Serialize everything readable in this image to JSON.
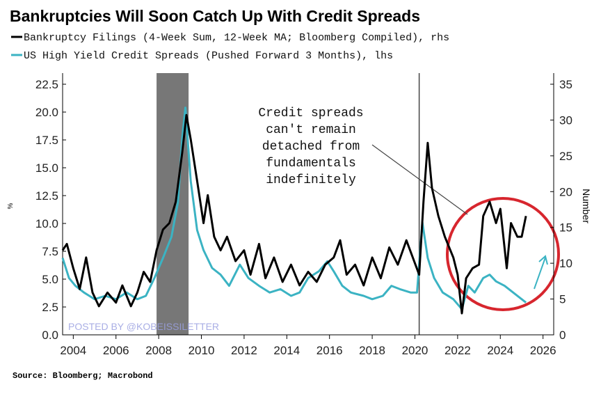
{
  "chart_data": {
    "type": "line",
    "title": "Bankruptcies Will Soon Catch Up With Credit Spreads",
    "ylabel": "%",
    "y2label": "Number",
    "source": "Source: Bloomberg; Macrobond",
    "watermark": "POSTED BY @KOBEISSILETTER",
    "annotation": [
      "Credit spreads",
      "can't remain",
      "detached from",
      "fundamentals",
      "indefinitely"
    ],
    "shaded_periods": [
      [
        2007.9,
        2009.4
      ]
    ],
    "vlines": [
      2020.2
    ],
    "xlim": [
      2003.5,
      2026.5
    ],
    "xticks": [
      2004,
      2006,
      2008,
      2010,
      2012,
      2014,
      2016,
      2018,
      2020,
      2022,
      2024,
      2026
    ],
    "ylim": [
      0,
      22.5
    ],
    "yticks": [
      {
        "value": 0,
        "label": "0.0"
      },
      2.5,
      {
        "value": 5,
        "label": "5.0"
      },
      7.5,
      {
        "value": 10,
        "label": "10.0"
      },
      12.5,
      {
        "value": 15,
        "label": "15.0"
      },
      17.5,
      {
        "value": 20,
        "label": "20.0"
      },
      22.5
    ],
    "y2lim": [
      0,
      35
    ],
    "y2ticks": [
      0,
      5,
      10,
      15,
      20,
      25,
      30,
      35
    ],
    "series": [
      {
        "name": "Bankruptcy Filings (4-Week Sum, 12-Week MA; Bloomberg Compiled), rhs",
        "color": "#000000",
        "axis": "y2",
        "x": [
          2003.5,
          2003.7,
          2004,
          2004.3,
          2004.6,
          2004.9,
          2005.2,
          2005.6,
          2006,
          2006.3,
          2006.7,
          2007,
          2007.3,
          2007.6,
          2007.9,
          2008.2,
          2008.5,
          2008.8,
          2009.1,
          2009.3,
          2009.5,
          2009.8,
          2010.1,
          2010.3,
          2010.6,
          2010.9,
          2011.2,
          2011.6,
          2012,
          2012.3,
          2012.7,
          2013,
          2013.4,
          2013.8,
          2014.2,
          2014.6,
          2015,
          2015.4,
          2015.8,
          2016.2,
          2016.5,
          2016.8,
          2017.2,
          2017.6,
          2018,
          2018.4,
          2018.8,
          2019.2,
          2019.6,
          2019.9,
          2020.2,
          2020.4,
          2020.6,
          2020.8,
          2021.1,
          2021.4,
          2021.8,
          2022,
          2022.2,
          2022.4,
          2022.7,
          2023,
          2023.2,
          2023.5,
          2023.8,
          2024,
          2024.3,
          2024.5,
          2024.8,
          2025,
          2025.2
        ],
        "values": [
          11.8,
          12.7,
          9.3,
          6.4,
          10.8,
          5.9,
          4.0,
          5.9,
          4.5,
          6.9,
          4.0,
          5.9,
          8.8,
          7.4,
          11.8,
          14.7,
          15.6,
          18.6,
          25.4,
          30.7,
          27.3,
          21.5,
          15.6,
          19.5,
          13.7,
          11.8,
          13.7,
          10.3,
          11.8,
          8.4,
          12.7,
          7.9,
          10.8,
          7.4,
          9.8,
          6.9,
          8.8,
          7.4,
          9.8,
          10.8,
          13.2,
          8.4,
          9.8,
          6.9,
          10.8,
          7.9,
          12.2,
          9.8,
          13.2,
          10.8,
          8.4,
          18.6,
          26.8,
          20.5,
          16.6,
          13.7,
          10.8,
          8.4,
          3.0,
          7.9,
          9.3,
          9.8,
          16.6,
          18.6,
          15.6,
          17.6,
          9.3,
          15.6,
          13.7,
          13.7,
          16.6
        ]
      },
      {
        "name": "US High Yield Credit Spreads (Pushed Forward 3 Months), lhs",
        "color": "#3bb3c3",
        "axis": "y",
        "x": [
          2003.5,
          2003.8,
          2004.1,
          2004.5,
          2005,
          2005.5,
          2006,
          2006.5,
          2007,
          2007.4,
          2007.8,
          2008.2,
          2008.6,
          2008.9,
          2009.1,
          2009.25,
          2009.5,
          2009.8,
          2010.1,
          2010.5,
          2010.9,
          2011.3,
          2011.8,
          2012.2,
          2012.7,
          2013.2,
          2013.7,
          2014.2,
          2014.6,
          2015,
          2015.5,
          2015.9,
          2016.2,
          2016.6,
          2017,
          2017.6,
          2018,
          2018.5,
          2018.9,
          2019.3,
          2019.8,
          2020.1,
          2020.35,
          2020.6,
          2020.9,
          2021.3,
          2021.8,
          2022.2,
          2022.5,
          2022.8,
          2023.2,
          2023.5,
          2023.8,
          2024.2,
          2024.6,
          2025,
          2025.2
        ],
        "values": [
          6.9,
          5.1,
          4.4,
          3.8,
          3.2,
          3.5,
          3.2,
          3.8,
          3.2,
          3.5,
          5.1,
          6.9,
          8.8,
          11.9,
          17.6,
          20.4,
          13.8,
          9.4,
          7.6,
          6.0,
          5.4,
          4.4,
          6.3,
          5.1,
          4.4,
          3.8,
          4.1,
          3.5,
          3.8,
          5.1,
          5.7,
          6.6,
          5.7,
          4.4,
          3.8,
          3.5,
          3.2,
          3.5,
          4.4,
          4.1,
          3.8,
          3.8,
          10.1,
          6.9,
          5.1,
          3.8,
          3.2,
          2.3,
          4.4,
          3.8,
          5.1,
          5.4,
          4.8,
          4.4,
          3.8,
          3.2,
          2.9
        ]
      }
    ]
  }
}
